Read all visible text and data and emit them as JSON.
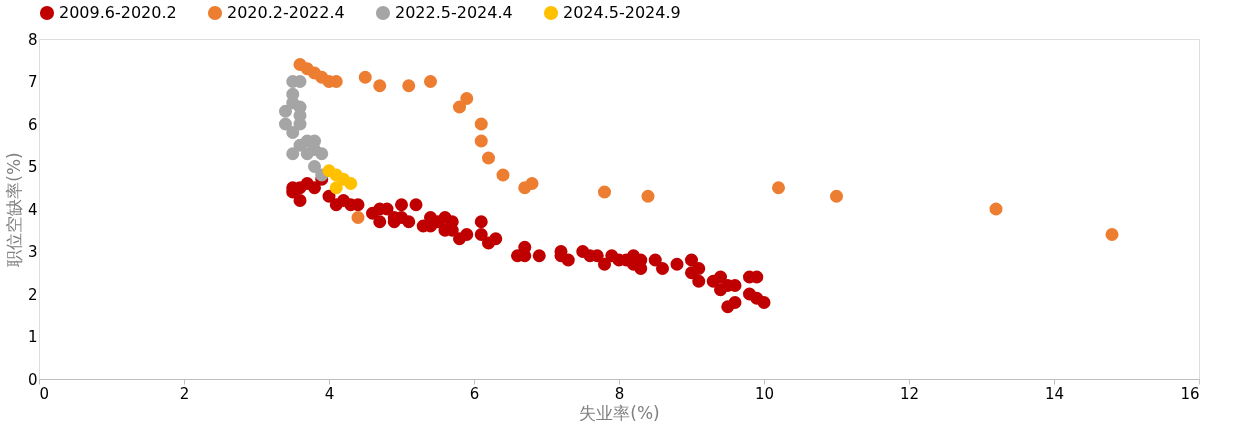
{
  "chart_data": {
    "type": "scatter",
    "xlabel": "失业率(%)",
    "ylabel": "职位空缺率(%)",
    "xlim": [
      0,
      16
    ],
    "xticks": [
      0,
      2,
      4,
      6,
      8,
      10,
      12,
      14,
      16
    ],
    "ylim": [
      0,
      8
    ],
    "yticks": [
      0,
      1,
      2,
      3,
      4,
      5,
      6,
      7,
      8
    ],
    "grid": false,
    "legend": "top",
    "marker": "circle",
    "series": [
      {
        "name": "2009.6-2020.2",
        "color": "#c00000",
        "x": [
          3.5,
          3.5,
          3.6,
          3.6,
          3.7,
          3.8,
          3.9,
          4.0,
          4.1,
          4.2,
          4.3,
          4.4,
          4.6,
          4.7,
          4.7,
          4.8,
          4.9,
          4.9,
          5.0,
          5.0,
          5.1,
          5.2,
          5.3,
          5.4,
          5.4,
          5.5,
          5.6,
          5.6,
          5.7,
          5.7,
          5.8,
          5.9,
          6.1,
          6.1,
          6.2,
          6.3,
          6.6,
          6.7,
          6.7,
          6.9,
          7.2,
          7.2,
          7.3,
          7.5,
          7.6,
          7.7,
          7.8,
          7.9,
          8.0,
          8.1,
          8.2,
          8.2,
          8.3,
          8.3,
          8.5,
          8.6,
          8.8,
          9.0,
          9.0,
          9.1,
          9.1,
          9.3,
          9.4,
          9.4,
          9.5,
          9.5,
          9.6,
          9.6,
          9.8,
          9.8,
          9.9,
          9.9,
          10.0
        ],
        "values": [
          4.5,
          4.4,
          4.5,
          4.2,
          4.6,
          4.5,
          4.7,
          4.3,
          4.1,
          4.2,
          4.1,
          4.1,
          3.9,
          3.7,
          4.0,
          4.0,
          3.8,
          3.7,
          4.1,
          3.8,
          3.7,
          4.1,
          3.6,
          3.8,
          3.6,
          3.7,
          3.8,
          3.5,
          3.7,
          3.5,
          3.3,
          3.4,
          3.7,
          3.4,
          3.2,
          3.3,
          2.9,
          3.1,
          2.9,
          2.9,
          3.0,
          2.9,
          2.8,
          3.0,
          2.9,
          2.9,
          2.7,
          2.9,
          2.8,
          2.8,
          2.9,
          2.7,
          2.8,
          2.6,
          2.8,
          2.6,
          2.7,
          2.8,
          2.5,
          2.6,
          2.3,
          2.3,
          2.4,
          2.1,
          2.2,
          1.7,
          2.2,
          1.8,
          2.4,
          2.0,
          2.4,
          1.9,
          1.8
        ]
      },
      {
        "name": "2020.2-2022.4",
        "color": "#ed7d31",
        "x": [
          4.4,
          14.8,
          13.2,
          11.0,
          10.2,
          8.4,
          7.8,
          6.8,
          6.7,
          6.4,
          6.2,
          6.1,
          6.1,
          5.9,
          5.8,
          5.4,
          5.1,
          4.7,
          4.5,
          4.1,
          4.0,
          3.9,
          3.8,
          3.7,
          3.6
        ],
        "values": [
          3.8,
          3.4,
          4.0,
          4.3,
          4.5,
          4.3,
          4.4,
          4.6,
          4.5,
          4.8,
          5.2,
          5.6,
          6.0,
          6.6,
          6.4,
          7.0,
          6.9,
          6.9,
          7.1,
          7.0,
          7.0,
          7.1,
          7.2,
          7.3,
          7.4
        ]
      },
      {
        "name": "2022.5-2024.4",
        "color": "#a5a5a5",
        "x": [
          3.6,
          3.5,
          3.5,
          3.5,
          3.6,
          3.4,
          3.6,
          3.4,
          3.6,
          3.5,
          3.6,
          3.5,
          3.7,
          3.8,
          3.7,
          3.9,
          3.8,
          3.8,
          3.9
        ],
        "values": [
          7.0,
          7.0,
          6.7,
          6.5,
          6.4,
          6.3,
          6.2,
          6.0,
          6.0,
          5.8,
          5.5,
          5.3,
          5.6,
          5.6,
          5.3,
          5.3,
          5.4,
          5.0,
          4.8
        ]
      },
      {
        "name": "2024.5-2024.9",
        "color": "#ffc000",
        "x": [
          4.0,
          4.1,
          4.2,
          4.3,
          4.1
        ],
        "values": [
          4.9,
          4.8,
          4.7,
          4.6,
          4.5
        ]
      }
    ]
  }
}
